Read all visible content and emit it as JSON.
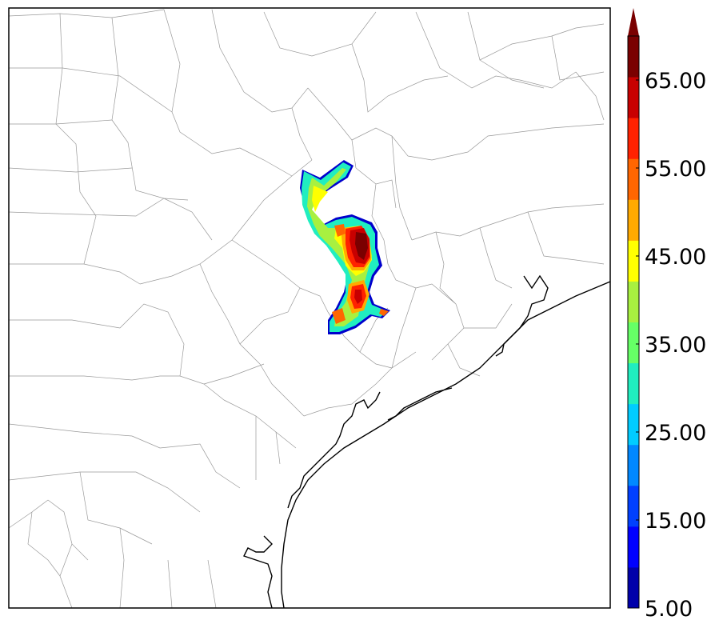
{
  "colorbar": {
    "labels": [
      "5.00",
      "15.00",
      "25.00",
      "35.00",
      "45.00",
      "55.00",
      "65.00"
    ],
    "levels": [
      5,
      10,
      15,
      20,
      25,
      30,
      35,
      40,
      45,
      50,
      55,
      60,
      65,
      70
    ],
    "colors": [
      "#0000aa",
      "#0000ff",
      "#0040ff",
      "#0088ff",
      "#00ccff",
      "#20eec0",
      "#66ff66",
      "#a8f040",
      "#ffff00",
      "#ffaa00",
      "#ff6600",
      "#ff2200",
      "#c80000",
      "#7a0000"
    ],
    "extend": "max"
  },
  "map": {
    "border_color": "#000000",
    "county_color": "#999999",
    "coast_color": "#000000"
  }
}
